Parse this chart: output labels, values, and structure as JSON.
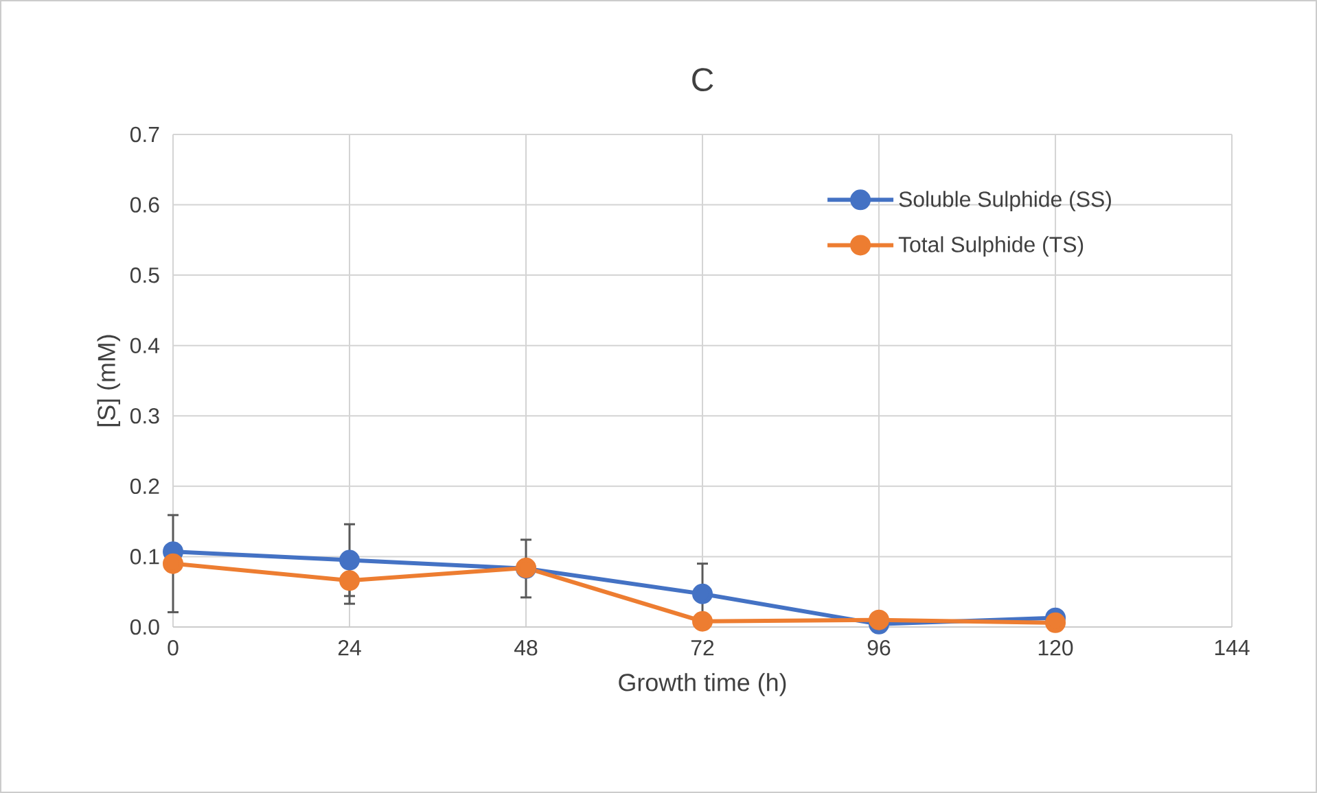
{
  "chart_data": {
    "type": "line",
    "title": "C",
    "xlabel": "Growth time (h)",
    "ylabel": "[S] (mM)",
    "x": [
      0,
      24,
      48,
      72,
      96,
      120
    ],
    "series": [
      {
        "name": "Soluble Sulphide (SS)",
        "color": "#4472c4",
        "values": [
          0.107,
          0.095,
          0.083,
          0.047,
          0.004,
          0.013
        ],
        "errors": [
          null,
          0.051,
          0.041,
          0.043,
          null,
          null
        ]
      },
      {
        "name": "Total Sulphide (TS)",
        "color": "#ed7d31",
        "values": [
          0.09,
          0.066,
          0.084,
          0.008,
          0.01,
          0.006
        ],
        "errors": [
          0.069,
          0.033,
          null,
          null,
          null,
          null
        ]
      }
    ],
    "xlim": [
      0,
      144
    ],
    "xticks": [
      0,
      24,
      48,
      72,
      96,
      120,
      144
    ],
    "ylim": [
      0,
      0.7
    ],
    "yticks": [
      {
        "value": 0,
        "label": "0.0"
      },
      0.1,
      0.2,
      0.3,
      0.4,
      0.5,
      0.6,
      0.7
    ],
    "grid": true,
    "legend": "top right",
    "marker": "circle",
    "line_style": "solid"
  }
}
